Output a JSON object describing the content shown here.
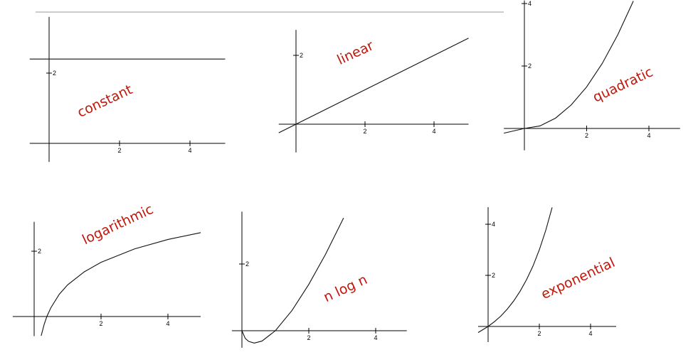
{
  "chart_data": [
    {
      "type": "line",
      "annotation": "constant",
      "x": [
        -0.55,
        5.0
      ],
      "values": [
        2.4,
        2.4
      ],
      "xlim": [
        -0.55,
        5.0
      ],
      "ylim": [
        -0.53,
        3.6
      ],
      "xticks": [
        2,
        4
      ],
      "yticks": [
        2
      ]
    },
    {
      "type": "line",
      "annotation": "linear",
      "x": [
        -0.5,
        5.0
      ],
      "values": [
        -0.25,
        2.5
      ],
      "xlim": [
        -0.5,
        5.0
      ],
      "ylim": [
        -0.82,
        2.74
      ],
      "xticks": [
        2,
        4
      ],
      "yticks": [
        2
      ]
    },
    {
      "type": "line",
      "annotation": "quadratic",
      "x": [
        -0.66,
        0,
        0.5,
        1,
        1.5,
        2,
        2.5,
        3,
        3.5
      ],
      "values": [
        -0.15,
        0,
        0.08,
        0.33,
        0.75,
        1.33,
        2.08,
        3,
        4.08
      ],
      "xlim": [
        -0.66,
        5.0
      ],
      "ylim": [
        -0.7,
        4.1
      ],
      "xticks": [
        2,
        4
      ],
      "yticks": [
        2,
        4
      ]
    },
    {
      "type": "line",
      "annotation": "logarithmic",
      "x": [
        0.21,
        0.3,
        0.38,
        0.5,
        0.75,
        1,
        1.5,
        2,
        3,
        4,
        4.98
      ],
      "values": [
        -0.59,
        -0.24,
        0,
        0.27,
        0.68,
        0.97,
        1.37,
        1.66,
        2.07,
        2.36,
        2.57
      ],
      "xlim": [
        -0.64,
        4.98
      ],
      "ylim": [
        -0.6,
        2.9
      ],
      "xticks": [
        2,
        4
      ],
      "yticks": [
        2
      ]
    },
    {
      "type": "line",
      "annotation": "n log n",
      "x": [
        0,
        0.1,
        0.2,
        0.37,
        0.6,
        1,
        1.5,
        2,
        2.5,
        3.04
      ],
      "values": [
        0,
        -0.23,
        -0.32,
        -0.37,
        -0.31,
        0,
        0.61,
        1.39,
        2.29,
        3.38
      ],
      "xlim": [
        -0.3,
        4.93
      ],
      "ylim": [
        -0.51,
        3.57
      ],
      "xticks": [
        2,
        4
      ],
      "yticks": [
        2
      ]
    },
    {
      "type": "line",
      "annotation": "exponential",
      "x": [
        -0.39,
        0,
        0.25,
        0.5,
        0.75,
        1,
        1.25,
        1.5,
        1.75,
        2,
        2.25,
        2.5
      ],
      "values": [
        -0.24,
        0,
        0.19,
        0.41,
        0.68,
        1,
        1.38,
        1.83,
        2.36,
        3,
        3.76,
        4.66
      ],
      "xlim": [
        -0.39,
        5.0
      ],
      "ylim": [
        -0.61,
        4.67
      ],
      "xticks": [
        2,
        4
      ],
      "yticks": [
        2,
        4
      ]
    }
  ]
}
